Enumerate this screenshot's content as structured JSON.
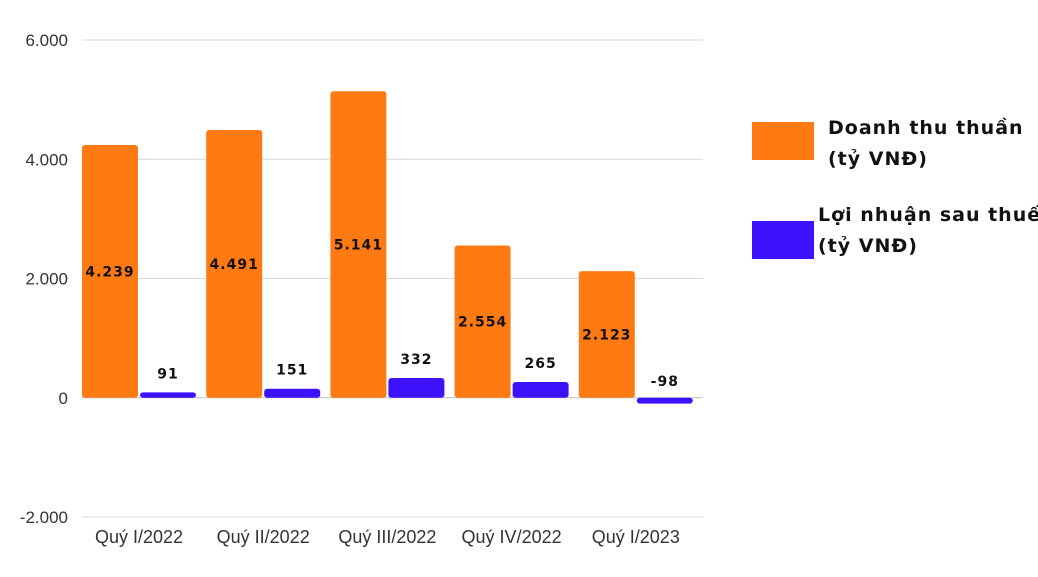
{
  "chart_data": {
    "type": "bar",
    "categories": [
      "Quý I/2022",
      "Quý II/2022",
      "Quý III/2022",
      "Quý IV/2022",
      "Quý I/2023"
    ],
    "series": [
      {
        "name": "Doanh thu thuần (tỷ VNĐ)",
        "name_lines": [
          "Doanh thu thuần",
          "(tỷ VNĐ)"
        ],
        "color": "#FF7A12",
        "values": [
          4239,
          4491,
          5141,
          2554,
          2123
        ],
        "labels": [
          "4.239",
          "4.491",
          "5.141",
          "2.554",
          "2.123"
        ]
      },
      {
        "name": "Lợi nhuận sau thuế (tỷ VNĐ)",
        "name_lines": [
          "Lợi nhuận sau thuế",
          "(tỷ VNĐ)"
        ],
        "color": "#3D12FA",
        "values": [
          91,
          151,
          332,
          265,
          -98
        ],
        "labels": [
          "91",
          "151",
          "332",
          "265",
          "-98"
        ]
      }
    ],
    "ylim": [
      -2000,
      6000
    ],
    "yticks": [
      -2000,
      0,
      2000,
      4000,
      6000
    ],
    "ytick_labels": [
      "-2.000",
      "0",
      "2.000",
      "4.000",
      "6.000"
    ],
    "grid": true,
    "legend": "right",
    "title": "",
    "xlabel": "",
    "ylabel": ""
  }
}
